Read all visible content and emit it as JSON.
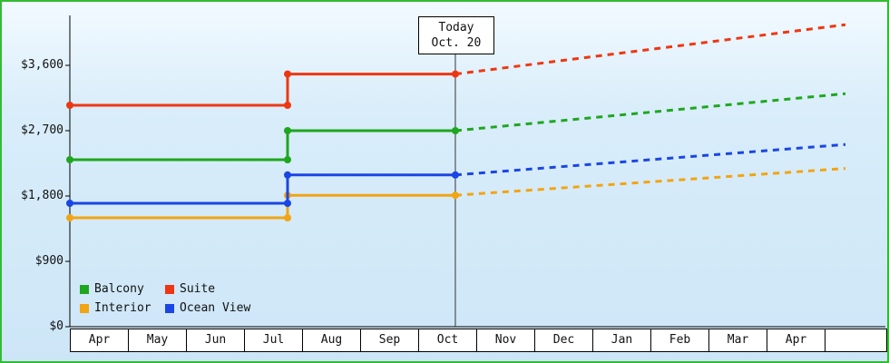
{
  "chart_data": {
    "type": "line",
    "x_categories": [
      "Apr",
      "May",
      "Jun",
      "Jul",
      "Aug",
      "Sep",
      "Oct",
      "Nov",
      "Dec",
      "Jan",
      "Feb",
      "Mar",
      "Apr"
    ],
    "y_ticks": [
      {
        "value": 0,
        "label": "$0"
      },
      {
        "value": 900,
        "label": "$900"
      },
      {
        "value": 1800,
        "label": "$1,800"
      },
      {
        "value": 2700,
        "label": "$2,700"
      },
      {
        "value": 3600,
        "label": "$3,600"
      }
    ],
    "y_axis_top_tick": 3600,
    "today_annotation": {
      "line1": "Today",
      "line2": "Oct. 20",
      "month_fraction": 6.64
    },
    "price_jump_month_fraction": 3.75,
    "series": [
      {
        "name": "Balcony",
        "color": "#1ea71e",
        "price_start": 2300,
        "price_after_jump": 2700,
        "price_today": 2700,
        "price_projected_end": 3210
      },
      {
        "name": "Suite",
        "color": "#ee3712",
        "price_start": 3050,
        "price_after_jump": 3480,
        "price_today": 3480,
        "price_projected_end": 4160
      },
      {
        "name": "Interior",
        "color": "#f2a413",
        "price_start": 1500,
        "price_after_jump": 1810,
        "price_today": 1810,
        "price_projected_end": 2180
      },
      {
        "name": "Ocean View",
        "color": "#1a46e5",
        "price_start": 1700,
        "price_after_jump": 2090,
        "price_today": 2090,
        "price_projected_end": 2510
      }
    ]
  },
  "colors": {
    "frame_border": "#33bb33",
    "axis": "#000000",
    "today_line": "#333333"
  }
}
